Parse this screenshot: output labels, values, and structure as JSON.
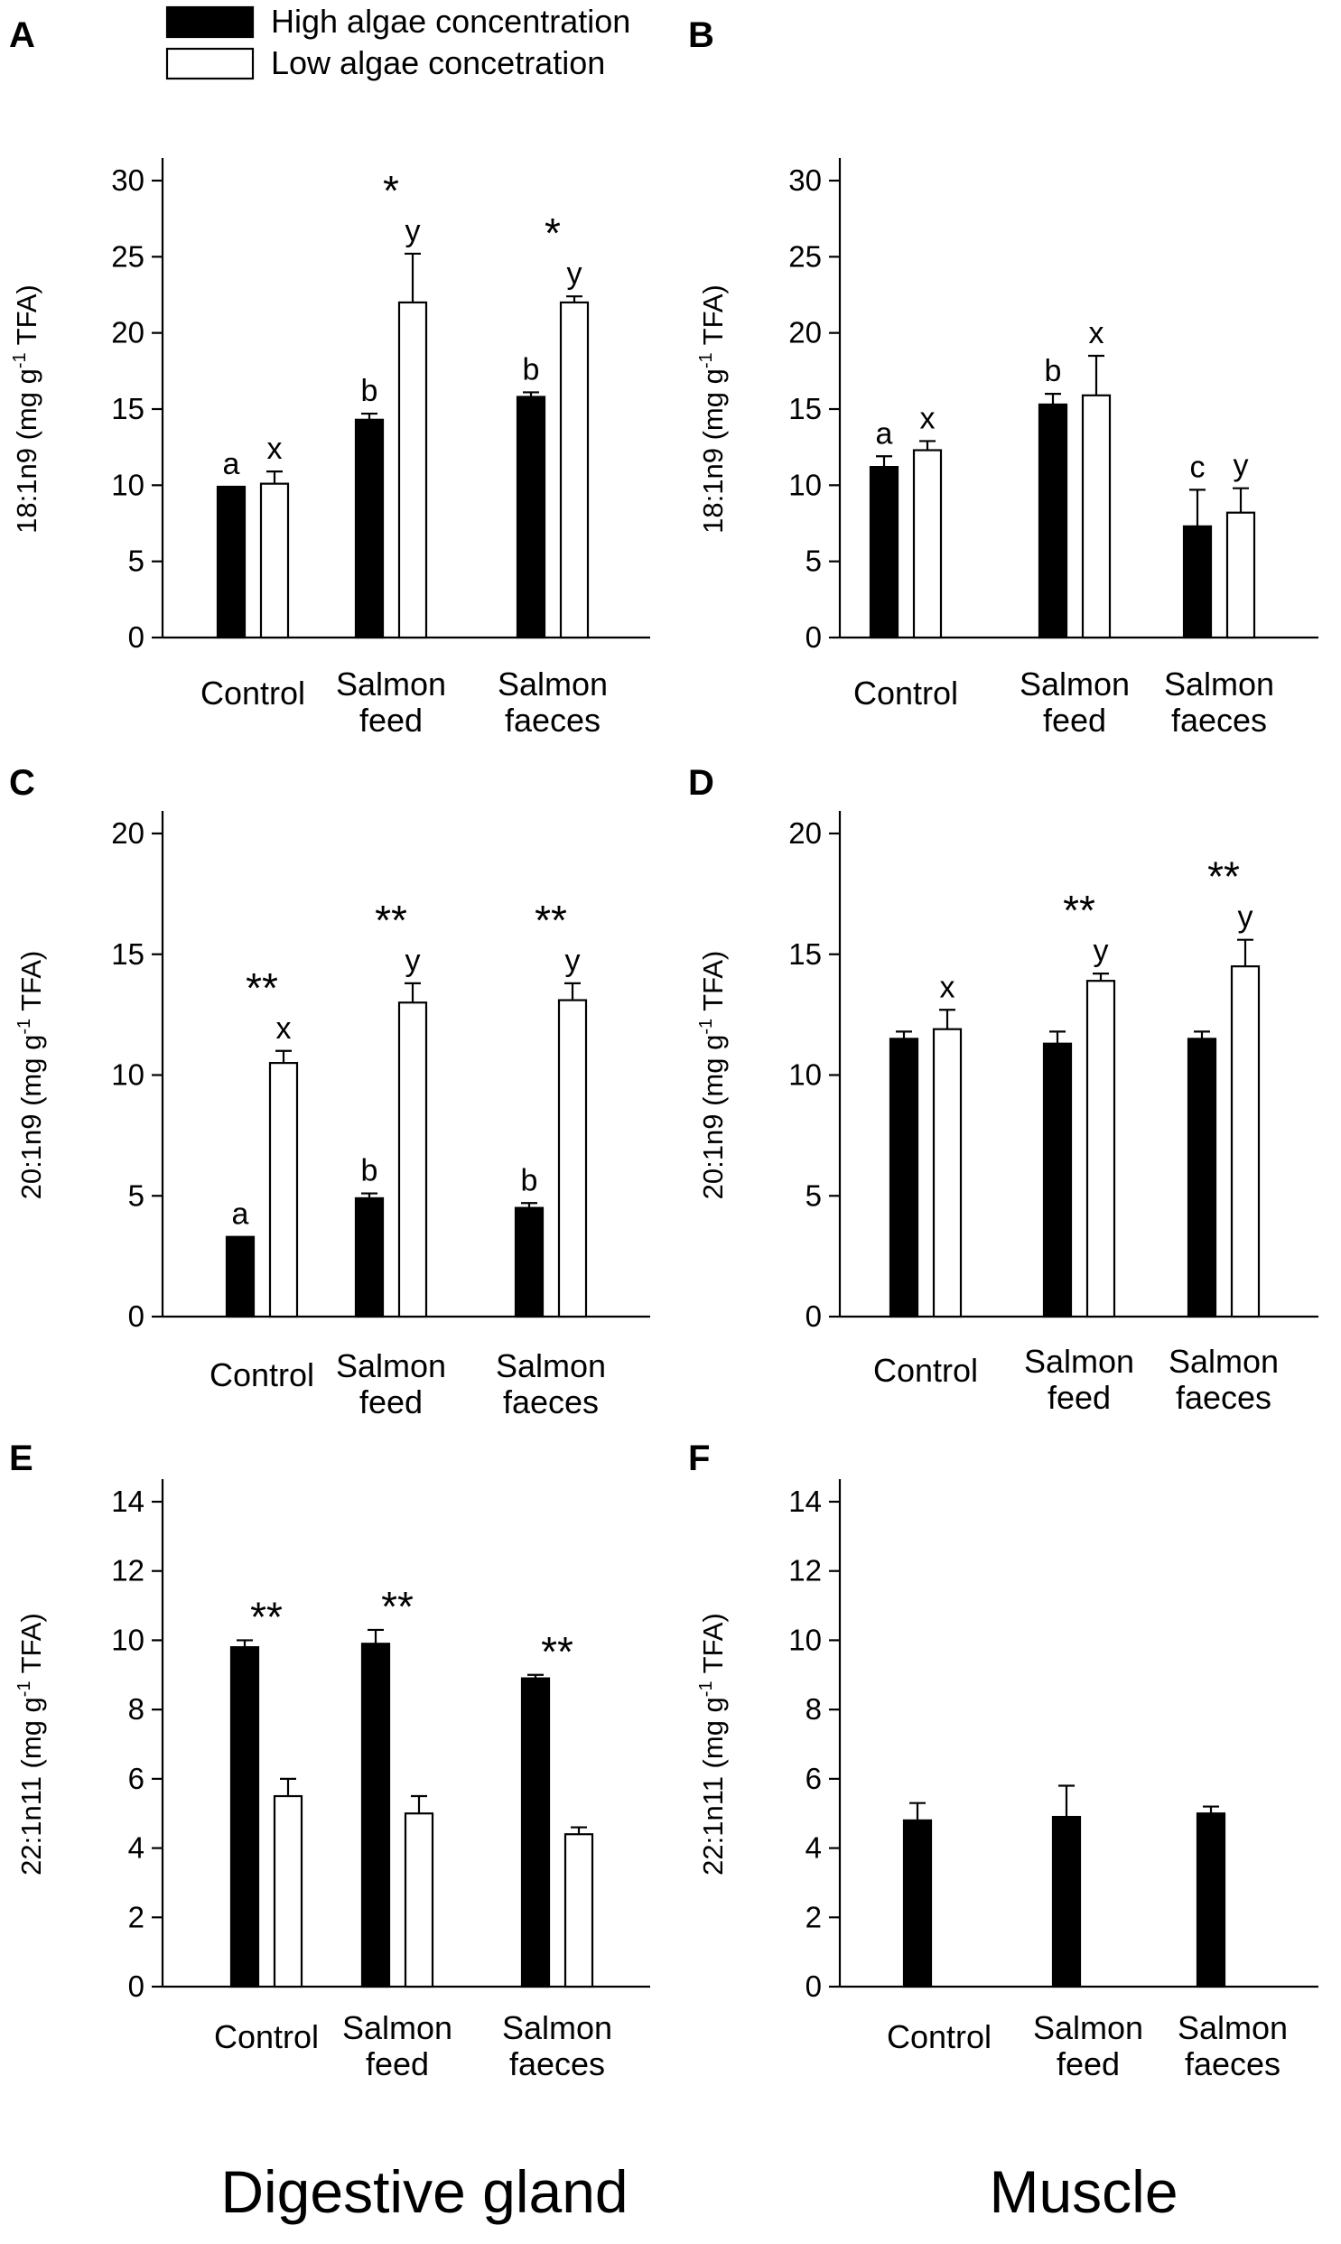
{
  "legend": {
    "high_label": "High algae concentration",
    "low_label": "Low algae concetration"
  },
  "footer": {
    "left": "Digestive gland",
    "right": "Muscle"
  },
  "colors": {
    "high": "#000000",
    "low": "#ffffff"
  },
  "chart_data": [
    {
      "panel": "A",
      "type": "bar",
      "tissue": "Digestive gland",
      "ylabel": "18:1n9 (mg g-1 TFA)",
      "ylabel_main": "18:1n9 (mg g",
      "ylabel_sup": "-1",
      "ylabel_tail": " TFA)",
      "ylim": [
        0,
        30
      ],
      "yticks": [
        0,
        5,
        10,
        15,
        20,
        25,
        30
      ],
      "categories": [
        [
          "Control"
        ],
        [
          "Salmon",
          "feed"
        ],
        [
          "Salmon",
          "faeces"
        ]
      ],
      "series": [
        {
          "name": "High algae concentration",
          "values": [
            9.9,
            14.3,
            15.8
          ],
          "errors": [
            0,
            0.4,
            0.3
          ],
          "letters": [
            "a",
            "b",
            "b"
          ]
        },
        {
          "name": "Low algae concetration",
          "values": [
            10.1,
            22.0,
            22.0
          ],
          "errors": [
            0.8,
            3.2,
            0.4
          ],
          "letters": [
            "x",
            "y",
            "y"
          ]
        }
      ],
      "stars": [
        "",
        "*",
        "*"
      ]
    },
    {
      "panel": "B",
      "type": "bar",
      "tissue": "Muscle",
      "ylabel": "18:1n9 (mg g-1 TFA)",
      "ylabel_main": "18:1n9 (mg g",
      "ylabel_sup": "-1",
      "ylabel_tail": " TFA)",
      "ylim": [
        0,
        30
      ],
      "yticks": [
        0,
        5,
        10,
        15,
        20,
        25,
        30
      ],
      "categories": [
        [
          "Control"
        ],
        [
          "Salmon",
          "feed"
        ],
        [
          "Salmon",
          "faeces"
        ]
      ],
      "series": [
        {
          "name": "High algae concentration",
          "values": [
            11.2,
            15.3,
            7.3
          ],
          "errors": [
            0.7,
            0.7,
            2.4
          ],
          "letters": [
            "a",
            "b",
            "c"
          ]
        },
        {
          "name": "Low algae concetration",
          "values": [
            12.3,
            15.9,
            8.2
          ],
          "errors": [
            0.6,
            2.6,
            1.6
          ],
          "letters": [
            "x",
            "x",
            "y"
          ]
        }
      ],
      "stars": [
        "",
        "",
        ""
      ]
    },
    {
      "panel": "C",
      "type": "bar",
      "tissue": "Digestive gland",
      "ylabel": "20:1n9 (mg g-1 TFA)",
      "ylabel_main": "20:1n9 (mg g",
      "ylabel_sup": "-1",
      "ylabel_tail": " TFA)",
      "ylim": [
        0,
        20
      ],
      "yticks": [
        0,
        5,
        10,
        15,
        20
      ],
      "categories": [
        [
          "Control"
        ],
        [
          "Salmon",
          "feed"
        ],
        [
          "Salmon",
          "faeces"
        ]
      ],
      "series": [
        {
          "name": "High algae concentration",
          "values": [
            3.3,
            4.9,
            4.5
          ],
          "errors": [
            0,
            0.2,
            0.2
          ],
          "letters": [
            "a",
            "b",
            "b"
          ]
        },
        {
          "name": "Low algae concetration",
          "values": [
            10.5,
            13.0,
            13.1
          ],
          "errors": [
            0.5,
            0.8,
            0.7
          ],
          "letters": [
            "x",
            "y",
            "y"
          ]
        }
      ],
      "stars": [
        "**",
        "**",
        "**"
      ]
    },
    {
      "panel": "D",
      "type": "bar",
      "tissue": "Muscle",
      "ylabel": "20:1n9 (mg g-1 TFA)",
      "ylabel_main": "20:1n9 (mg g",
      "ylabel_sup": "-1",
      "ylabel_tail": " TFA)",
      "ylim": [
        0,
        20
      ],
      "yticks": [
        0,
        5,
        10,
        15,
        20
      ],
      "categories": [
        [
          "Control"
        ],
        [
          "Salmon",
          "feed"
        ],
        [
          "Salmon",
          "faeces"
        ]
      ],
      "series": [
        {
          "name": "High algae concentration",
          "values": [
            11.5,
            11.3,
            11.5
          ],
          "errors": [
            0.3,
            0.5,
            0.3
          ],
          "letters": [
            "",
            "",
            ""
          ]
        },
        {
          "name": "Low algae concetration",
          "values": [
            11.9,
            13.9,
            14.5
          ],
          "errors": [
            0.8,
            0.3,
            1.1
          ],
          "letters": [
            "x",
            "y",
            "y"
          ]
        }
      ],
      "stars": [
        "",
        "**",
        "**"
      ]
    },
    {
      "panel": "E",
      "type": "bar",
      "tissue": "Digestive gland",
      "ylabel": "22:1n11 (mg g-1 TFA)",
      "ylabel_main": "22:1n11 (mg g",
      "ylabel_sup": "-1",
      "ylabel_tail": " TFA)",
      "ylim": [
        0,
        14
      ],
      "yticks": [
        0,
        2,
        4,
        6,
        8,
        10,
        12,
        14
      ],
      "categories": [
        [
          "Control"
        ],
        [
          "Salmon",
          "feed"
        ],
        [
          "Salmon",
          "faeces"
        ]
      ],
      "series": [
        {
          "name": "High algae concentration",
          "values": [
            9.8,
            9.9,
            8.9
          ],
          "errors": [
            0.2,
            0.4,
            0.1
          ],
          "letters": [
            "",
            "",
            ""
          ]
        },
        {
          "name": "Low algae concetration",
          "values": [
            5.5,
            5.0,
            4.4
          ],
          "errors": [
            0.5,
            0.5,
            0.2
          ],
          "letters": [
            "",
            "",
            ""
          ]
        }
      ],
      "stars": [
        "**",
        "**",
        "**"
      ]
    },
    {
      "panel": "F",
      "type": "bar",
      "tissue": "Muscle",
      "ylabel": "22:1n11 (mg g-1 TFA)",
      "ylabel_main": "22:1n11 (mg g",
      "ylabel_sup": "-1",
      "ylabel_tail": " TFA)",
      "ylim": [
        0,
        14
      ],
      "yticks": [
        0,
        2,
        4,
        6,
        8,
        10,
        12,
        14
      ],
      "categories": [
        [
          "Control"
        ],
        [
          "Salmon",
          "feed"
        ],
        [
          "Salmon",
          "faeces"
        ]
      ],
      "series": [
        {
          "name": "High algae concentration",
          "values": [
            4.8,
            4.9,
            5.0
          ],
          "errors": [
            0.5,
            0.9,
            0.2
          ],
          "letters": [
            "",
            "",
            ""
          ]
        },
        {
          "name": "Low algae concetration",
          "values": [
            0,
            0,
            0
          ],
          "errors": [
            0,
            0,
            0
          ],
          "letters": [
            "",
            "",
            ""
          ]
        }
      ],
      "stars": [
        "",
        "",
        ""
      ]
    }
  ]
}
